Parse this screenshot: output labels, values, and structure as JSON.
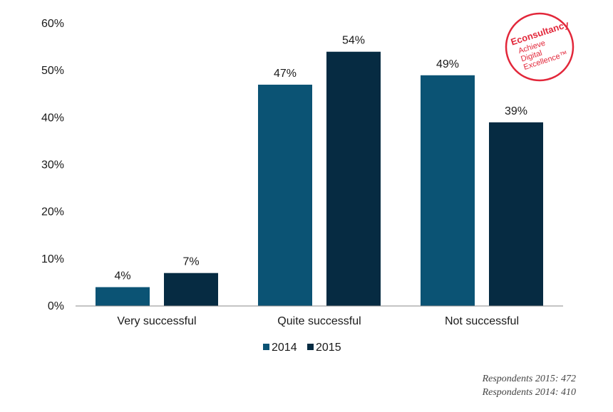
{
  "chart_data": {
    "type": "bar",
    "categories": [
      "Very successful",
      "Quite successful",
      "Not successful"
    ],
    "series": [
      {
        "name": "2014",
        "values": [
          4,
          47,
          49
        ],
        "color": "#0b5374"
      },
      {
        "name": "2015",
        "values": [
          7,
          54,
          39
        ],
        "color": "#062b42"
      }
    ],
    "ylim": [
      0,
      60
    ],
    "yticks": [
      0,
      10,
      20,
      30,
      40,
      50,
      60
    ],
    "tick_format": "{v}%",
    "data_labels": [
      [
        "4%",
        "47%",
        "49%"
      ],
      [
        "7%",
        "54%",
        "39%"
      ]
    ],
    "grid": false,
    "legend_position": "bottom"
  },
  "logo": {
    "lines": [
      "Econsultancy",
      "Achieve",
      "Digital",
      "Excellence™"
    ],
    "color": "#e2273a"
  },
  "footnotes": {
    "respondents_2015": "Respondents 2015: 472",
    "respondents_2014": "Respondents 2014: 410"
  }
}
